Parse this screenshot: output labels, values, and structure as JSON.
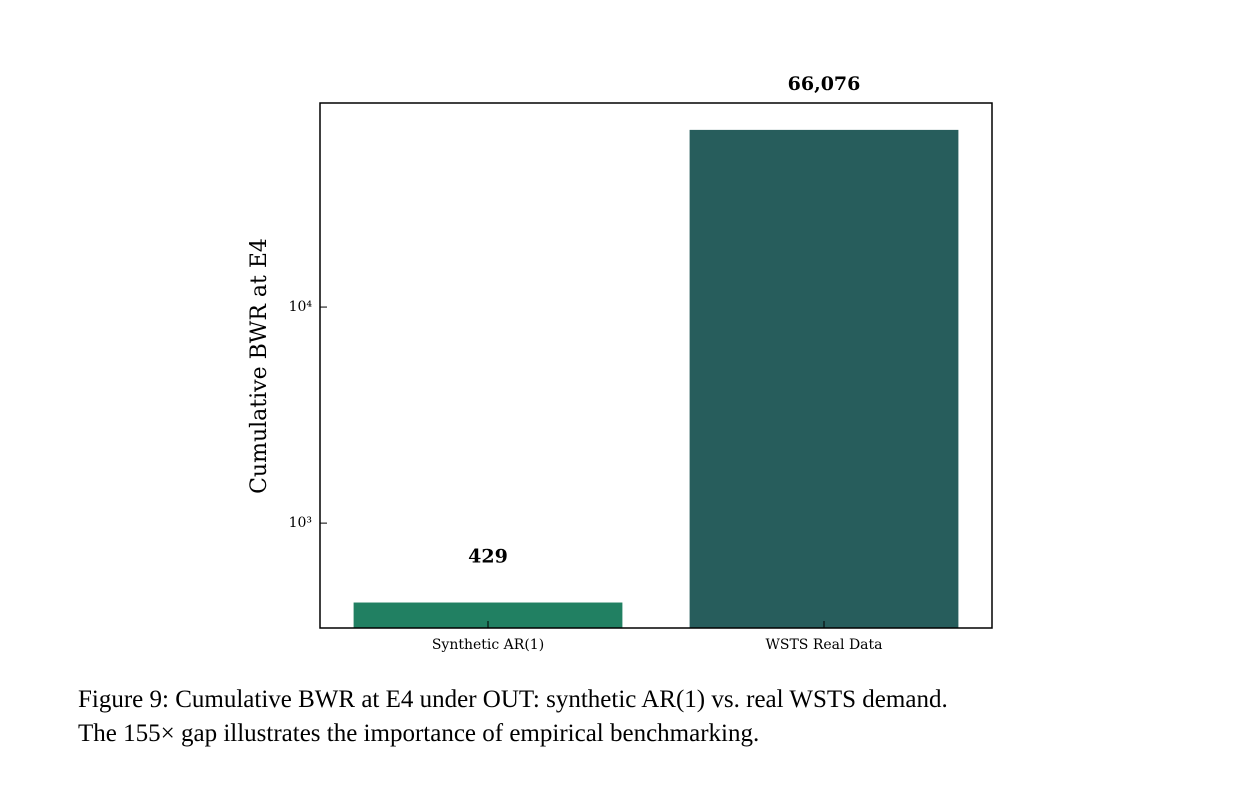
{
  "chart_data": {
    "type": "bar",
    "categories": [
      "Synthetic AR(1)",
      "WSTS Real Data"
    ],
    "values": [
      429,
      66076
    ],
    "value_labels": [
      "429",
      "66,076"
    ],
    "colors": [
      "#218062",
      "#275d5c"
    ],
    "ylabel": "Cumulative BWR at E4",
    "log_y": true,
    "ylim": [
      327,
      88000
    ],
    "yticks": [
      {
        "value": 1000,
        "label": "10³"
      },
      {
        "value": 10000,
        "label": "10⁴"
      }
    ],
    "caption": [
      "Figure 9: Cumulative BWR at E4 under OUT: synthetic AR(1) vs. real WSTS demand.",
      "The 155× gap illustrates the importance of empirical benchmarking."
    ]
  }
}
